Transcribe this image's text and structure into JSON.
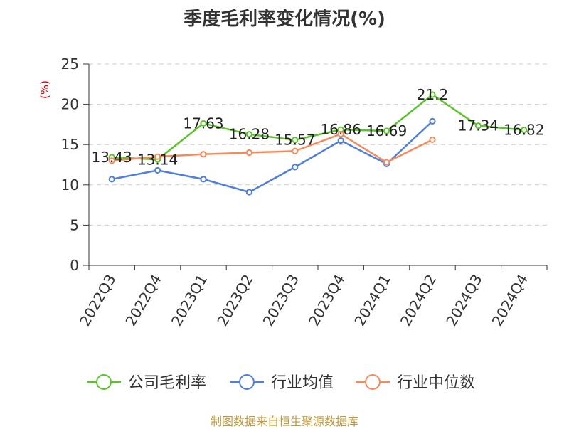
{
  "source_note": "制图数据来自恒生聚源数据库",
  "colors": {
    "company": "#5bc42a",
    "industry_avg": "#4f7fdb",
    "industry_median": "#f58b5a",
    "axis": "#333333",
    "grid": "#cccccc",
    "unit": "#cc0000"
  },
  "chart_data": {
    "type": "line",
    "title": "季度毛利率变化情况(%)",
    "ylabel": "(%)",
    "xlabel": "",
    "categories": [
      "2022Q3",
      "2022Q4",
      "2023Q1",
      "2023Q2",
      "2023Q3",
      "2023Q4",
      "2024Q1",
      "2024Q2",
      "2024Q3",
      "2024Q4"
    ],
    "ylim": [
      0,
      25
    ],
    "yticks": [
      "0",
      "5",
      "10",
      "15",
      "20",
      "25"
    ],
    "grid": true,
    "legend_position": "bottom",
    "series": [
      {
        "name": "公司毛利率",
        "values": [
          13.43,
          13.14,
          17.63,
          16.28,
          15.57,
          16.86,
          16.69,
          21.2,
          17.34,
          16.82
        ],
        "labels": [
          "13.43",
          "13.14",
          "17.63",
          "16.28",
          "15.57",
          "16.86",
          "16.69",
          "21.2",
          "17.34",
          "16.82"
        ],
        "color": "#5bc42a"
      },
      {
        "name": "行业均值",
        "values": [
          10.7,
          11.8,
          10.7,
          9.1,
          12.2,
          15.5,
          12.6,
          17.9,
          null,
          null
        ],
        "color": "#4f7fdb"
      },
      {
        "name": "行业中位数",
        "values": [
          13.0,
          13.5,
          13.8,
          14.0,
          14.2,
          16.3,
          12.8,
          15.6,
          null,
          null
        ],
        "color": "#f58b5a"
      }
    ]
  }
}
